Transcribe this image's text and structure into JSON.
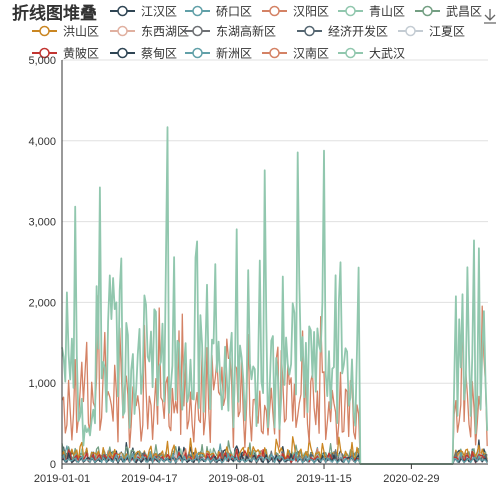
{
  "chart_data": {
    "type": "line",
    "title": "折线图堆叠",
    "xlabel": "",
    "ylabel": "",
    "x_ticks": [
      "2019-01-01",
      "2019-04-17",
      "2019-08-01",
      "2019-11-15",
      "2020-02-29"
    ],
    "y_ticks": [
      "0",
      "1,000",
      "2,000",
      "3,000",
      "4,000",
      "5,000"
    ],
    "ylim": [
      0,
      5000
    ],
    "xlim": [
      "2019-01-01",
      "2020-06-01"
    ],
    "grid": true,
    "legend_position": "top",
    "series": [
      {
        "name": "江汉区",
        "color": "#2f4554",
        "approx_max": 300
      },
      {
        "name": "硚口区",
        "color": "#61a0a8",
        "approx_max": 250
      },
      {
        "name": "汉阳区",
        "color": "#d48265",
        "approx_max": 200
      },
      {
        "name": "青山区",
        "color": "#91c7ae",
        "approx_max": 200
      },
      {
        "name": "武昌区",
        "color": "#749f83",
        "approx_max": 300
      },
      {
        "name": "洪山区",
        "color": "#ca8622",
        "approx_max": 350
      },
      {
        "name": "东西湖区",
        "color": "#e0b0a0",
        "approx_max": 150
      },
      {
        "name": "东湖高新区",
        "color": "#6e7074",
        "approx_max": 200
      },
      {
        "name": "经济开发区",
        "color": "#546570",
        "approx_max": 150
      },
      {
        "name": "江夏区",
        "color": "#c4ccd3",
        "approx_max": 150
      },
      {
        "name": "黄陂区",
        "color": "#c23531",
        "approx_max": 200
      },
      {
        "name": "蔡甸区",
        "color": "#2f4554",
        "approx_max": 150
      },
      {
        "name": "新洲区",
        "color": "#61a0a8",
        "approx_max": 150
      },
      {
        "name": "汉南区",
        "color": "#d48265",
        "approx_max": 2150
      },
      {
        "name": "大武汉",
        "color": "#91c7ae",
        "approx_max": 4300
      }
    ],
    "gap": {
      "from": "2019-12-28",
      "to": "2020-04-20",
      "value": 0
    }
  },
  "toolbox": {
    "icon": "download-icon"
  }
}
